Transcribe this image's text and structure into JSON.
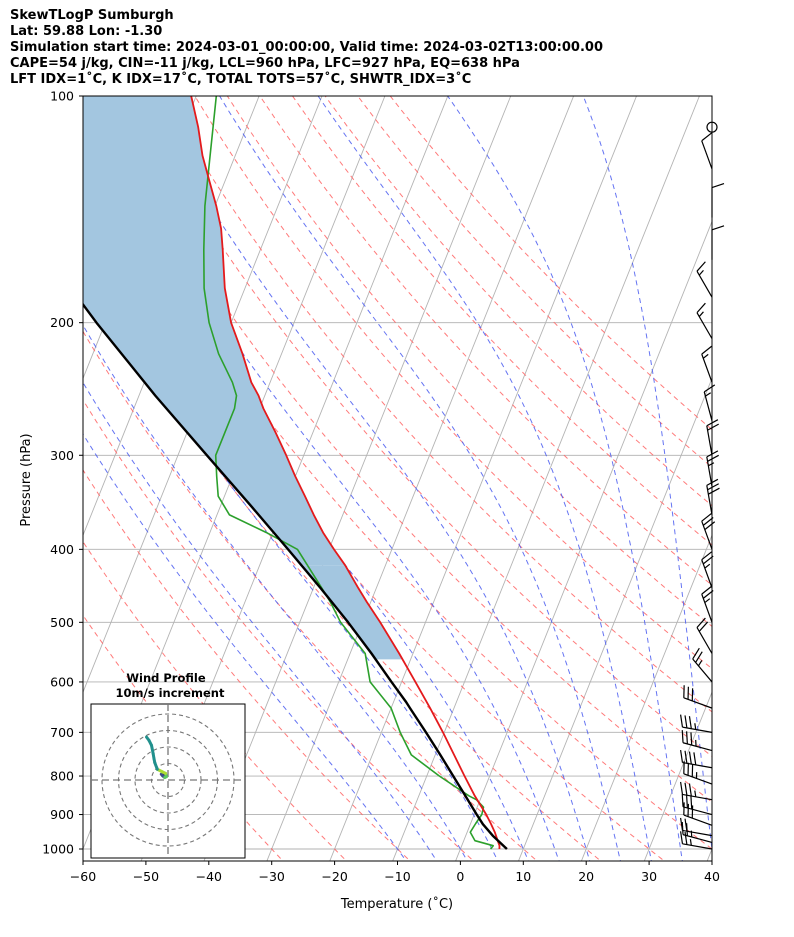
{
  "title": {
    "line1": "SkewTLogP Sumburgh",
    "line2": "Lat: 59.88   Lon: -1.30",
    "line3": "Simulation start time: 2024-03-01_00:00:00, Valid time: 2024-03-02T13:00:00.00",
    "line4": "CAPE=54 j/kg, CIN=-11 j/kg, LCL=960 hPa, LFC=927 hPa, EQ=638 hPa",
    "line5": "LFT IDX=1˚C, K IDX=17˚C, TOTAL TOTS=57˚C, SHWTR_IDX=3˚C"
  },
  "chart_data": {
    "type": "line",
    "subtype": "skew-t log-p",
    "xlabel": "Temperature (˚C)",
    "ylabel": "Pressure (hPa)",
    "xlim": [
      -60,
      40
    ],
    "ylim": [
      1050,
      100
    ],
    "skew_degC_per_decade": 48,
    "grid": true,
    "x_ticks": [
      "−60",
      "−50",
      "−40",
      "−30",
      "−20",
      "−10",
      "0",
      "10",
      "20",
      "30",
      "40"
    ],
    "x_tick_values": [
      -60,
      -50,
      -40,
      -30,
      -20,
      -10,
      0,
      10,
      20,
      30,
      40
    ],
    "y_ticks": [
      "100",
      "200",
      "300",
      "400",
      "500",
      "600",
      "700",
      "800",
      "900",
      "1000"
    ],
    "y_tick_values": [
      100,
      200,
      300,
      400,
      500,
      600,
      700,
      800,
      900,
      1000
    ],
    "series": [
      {
        "name": "Temperature",
        "color": "#e41a1c",
        "p": [
          1000,
          990,
          975,
          950,
          925,
          900,
          850,
          800,
          750,
          700,
          650,
          600,
          550,
          500,
          470,
          450,
          420,
          400,
          380,
          360,
          340,
          320,
          300,
          280,
          260,
          250,
          240,
          220,
          200,
          180,
          160,
          150,
          140,
          130,
          120,
          110,
          100
        ],
        "t": [
          6.2,
          6.0,
          5.4,
          4.4,
          3.2,
          1.9,
          -1.1,
          -4.0,
          -7.0,
          -10.2,
          -13.8,
          -17.8,
          -22.2,
          -27.2,
          -30.6,
          -32.9,
          -36.4,
          -39.2,
          -42.0,
          -44.6,
          -47.2,
          -50.0,
          -52.8,
          -55.9,
          -59.4,
          -61.0,
          -63.0,
          -66.2,
          -70.0,
          -73.2,
          -76.0,
          -77.6,
          -79.8,
          -82.4,
          -85.2,
          -87.7,
          -90.8
        ]
      },
      {
        "name": "Dewpoint",
        "color": "#2ca02c",
        "p": [
          1000,
          990,
          975,
          950,
          925,
          900,
          880,
          860,
          850,
          800,
          750,
          700,
          650,
          600,
          550,
          500,
          470,
          450,
          400,
          380,
          360,
          340,
          320,
          300,
          280,
          260,
          250,
          240,
          220,
          200,
          180,
          160,
          140,
          120,
          100
        ],
        "t": [
          4.8,
          5.0,
          1.8,
          0.5,
          0.8,
          1.2,
          1.0,
          -0.6,
          -2.0,
          -8.0,
          -13.8,
          -17.0,
          -20.0,
          -25.0,
          -27.6,
          -33.5,
          -36.4,
          -38.7,
          -45.0,
          -51.0,
          -58.0,
          -61.0,
          -62.5,
          -64.0,
          -64.0,
          -64.0,
          -64.5,
          -66.0,
          -70.0,
          -73.5,
          -76.5,
          -79.0,
          -81.6,
          -84.0,
          -86.8
        ]
      },
      {
        "name": "Parcel",
        "color": "#000000",
        "p": [
          1000,
          960,
          927,
          900,
          850,
          800,
          750,
          700,
          650,
          638,
          600,
          550,
          500,
          450,
          400,
          350,
          300,
          250,
          200,
          150,
          100
        ],
        "t": [
          7.4,
          4.3,
          2.0,
          0.4,
          -2.6,
          -5.8,
          -9.2,
          -12.9,
          -17.0,
          -18.0,
          -21.6,
          -26.6,
          -32.3,
          -38.9,
          -46.5,
          -55.2,
          -65.4,
          -77.4,
          -91.4,
          -108.5,
          -131.6
        ]
      }
    ],
    "cape_shading": {
      "from": "Parcel",
      "to": "Temperature",
      "color": "#a3c6e0"
    },
    "isotherms": [
      -120,
      -110,
      -100,
      -90,
      -80,
      -70,
      -60,
      -50,
      -40,
      -30,
      -20,
      -10,
      0,
      10,
      20,
      30,
      40
    ],
    "dry_adiabats_theta_c": [
      -30,
      -20,
      -10,
      0,
      10,
      20,
      30,
      40,
      50,
      60,
      70,
      80,
      90,
      100,
      110,
      120,
      130,
      140
    ],
    "moist_adiabats_t0_c": [
      -10,
      -5,
      0,
      5,
      10,
      15,
      20,
      25,
      30,
      35,
      40
    ],
    "colors": {
      "temperature": "#e41a1c",
      "dewpoint": "#2ca02c",
      "parcel": "#000000",
      "cape": "#a3c6e0",
      "dry_adiabat": "#ff6b6b",
      "moist_adiabat": "#4a5cf0",
      "isotherm": "#b4b4b4",
      "mixing": "#8f52c8"
    },
    "wind_barbs": {
      "p": [
        1000,
        980,
        960,
        930,
        900,
        860,
        820,
        780,
        740,
        700,
        650,
        600,
        550,
        500,
        450,
        400,
        360,
        330,
        300,
        270,
        240,
        210,
        185,
        165,
        145,
        125,
        110
      ],
      "speed_kt": [
        25,
        28,
        22,
        30,
        30,
        35,
        35,
        40,
        35,
        35,
        30,
        25,
        20,
        25,
        25,
        30,
        30,
        25,
        20,
        15,
        15,
        15,
        15,
        10,
        10,
        10,
        0
      ],
      "dir_deg": [
        280,
        285,
        280,
        290,
        285,
        280,
        290,
        280,
        285,
        280,
        290,
        320,
        330,
        340,
        340,
        340,
        350,
        350,
        350,
        345,
        340,
        330,
        330,
        0,
        0,
        340,
        0
      ]
    },
    "hodograph": {
      "title": "Wind Profile",
      "subtitle": "10m/s increment",
      "u": [
        -2,
        -3,
        -3.5,
        -4,
        -3.2,
        -2,
        -1,
        -1.5,
        -3.5,
        -6.5,
        -8,
        -8.5,
        -9,
        -10,
        -11.5,
        -13
      ],
      "v": [
        3,
        3.5,
        3,
        3.5,
        2.5,
        1.5,
        2,
        4,
        5,
        6.5,
        10.5,
        13,
        16,
        21,
        24,
        26
      ],
      "ring_step": 10
    }
  }
}
